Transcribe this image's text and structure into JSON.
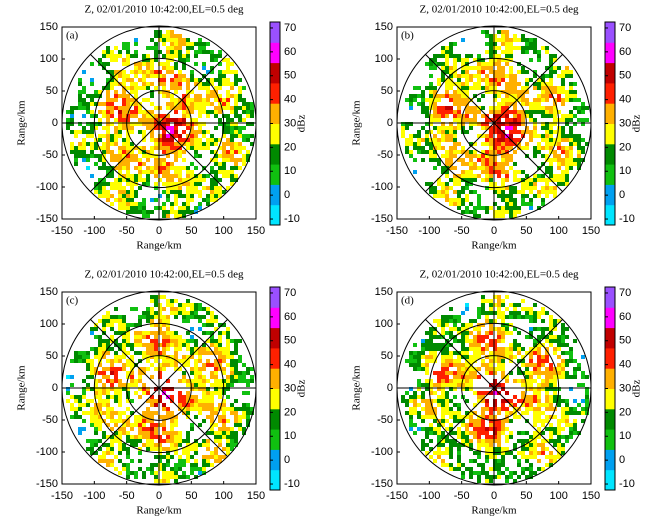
{
  "chart_data": [
    {
      "type": "ppi",
      "title": "Z, 02/01/2010 10:42:00,EL=0.5 deg",
      "panel_label": "(a)",
      "xlabel": "Range/km",
      "ylabel": "Range/km",
      "xlim": [
        -150,
        150
      ],
      "ylim": [
        -150,
        150
      ],
      "xticks": [
        -150,
        -100,
        -50,
        0,
        50,
        100,
        150
      ],
      "yticks": [
        -150,
        -100,
        -50,
        0,
        50,
        100,
        150
      ],
      "rings": [
        50,
        100,
        150
      ],
      "colorbar": {
        "label": "dBz",
        "lim": [
          -12.5,
          72.5
        ],
        "ticks": [
          -10,
          0,
          10,
          20,
          30,
          40,
          50,
          60,
          70
        ],
        "colors": [
          "#00e5ff",
          "#00a0f0",
          "#10c010",
          "#008a00",
          "#ffff00",
          "#ffb000",
          "#ff2000",
          "#c00000",
          "#ff00ff",
          "#9a50ff"
        ]
      }
    },
    {
      "type": "ppi",
      "title": "Z, 02/01/2010 10:42:00,EL=0.5 deg",
      "panel_label": "(b)",
      "xlabel": "Range/km",
      "ylabel": "Range/km",
      "xlim": [
        -150,
        150
      ],
      "ylim": [
        -150,
        150
      ],
      "xticks": [
        -150,
        -100,
        -50,
        0,
        50,
        100,
        150
      ],
      "yticks": [
        -150,
        -100,
        -50,
        0,
        50,
        100,
        150
      ],
      "rings": [
        50,
        100,
        150
      ],
      "colorbar": {
        "label": "dBz",
        "lim": [
          -12.5,
          72.5
        ],
        "ticks": [
          -10,
          0,
          10,
          20,
          30,
          40,
          50,
          60,
          70
        ],
        "colors": [
          "#00e5ff",
          "#00a0f0",
          "#10c010",
          "#008a00",
          "#ffff00",
          "#ffb000",
          "#ff2000",
          "#c00000",
          "#ff00ff",
          "#9a50ff"
        ]
      }
    },
    {
      "type": "ppi",
      "title": "Z, 02/01/2010 10:42:00,EL=0.5 deg",
      "panel_label": "(c)",
      "xlabel": "Range/km",
      "ylabel": "Range/km",
      "xlim": [
        -150,
        150
      ],
      "ylim": [
        -150,
        150
      ],
      "xticks": [
        -150,
        -100,
        -50,
        0,
        50,
        100,
        150
      ],
      "yticks": [
        -150,
        -100,
        -50,
        0,
        50,
        100,
        150
      ],
      "rings": [
        50,
        100,
        150
      ],
      "colorbar": {
        "label": "dBz",
        "lim": [
          -12.5,
          72.5
        ],
        "ticks": [
          -10,
          0,
          10,
          20,
          30,
          40,
          50,
          60,
          70
        ],
        "colors": [
          "#00e5ff",
          "#00a0f0",
          "#10c010",
          "#008a00",
          "#ffff00",
          "#ffb000",
          "#ff2000",
          "#c00000",
          "#ff00ff",
          "#9a50ff"
        ]
      }
    },
    {
      "type": "ppi",
      "title": "Z, 02/01/2010 10:42:00,EL=0.5 deg",
      "panel_label": "(d)",
      "xlabel": "Range/km",
      "ylabel": "Range/km",
      "xlim": [
        -150,
        150
      ],
      "ylim": [
        -150,
        150
      ],
      "xticks": [
        -150,
        -100,
        -50,
        0,
        50,
        100,
        150
      ],
      "yticks": [
        -150,
        -100,
        -50,
        0,
        50,
        100,
        150
      ],
      "rings": [
        50,
        100,
        150
      ],
      "colorbar": {
        "label": "dBz",
        "lim": [
          -12.5,
          72.5
        ],
        "ticks": [
          -10,
          0,
          10,
          20,
          30,
          40,
          50,
          60,
          70
        ],
        "colors": [
          "#00e5ff",
          "#00a0f0",
          "#10c010",
          "#008a00",
          "#ffff00",
          "#ffb000",
          "#ff2000",
          "#c00000",
          "#ff00ff",
          "#9a50ff"
        ]
      }
    }
  ]
}
